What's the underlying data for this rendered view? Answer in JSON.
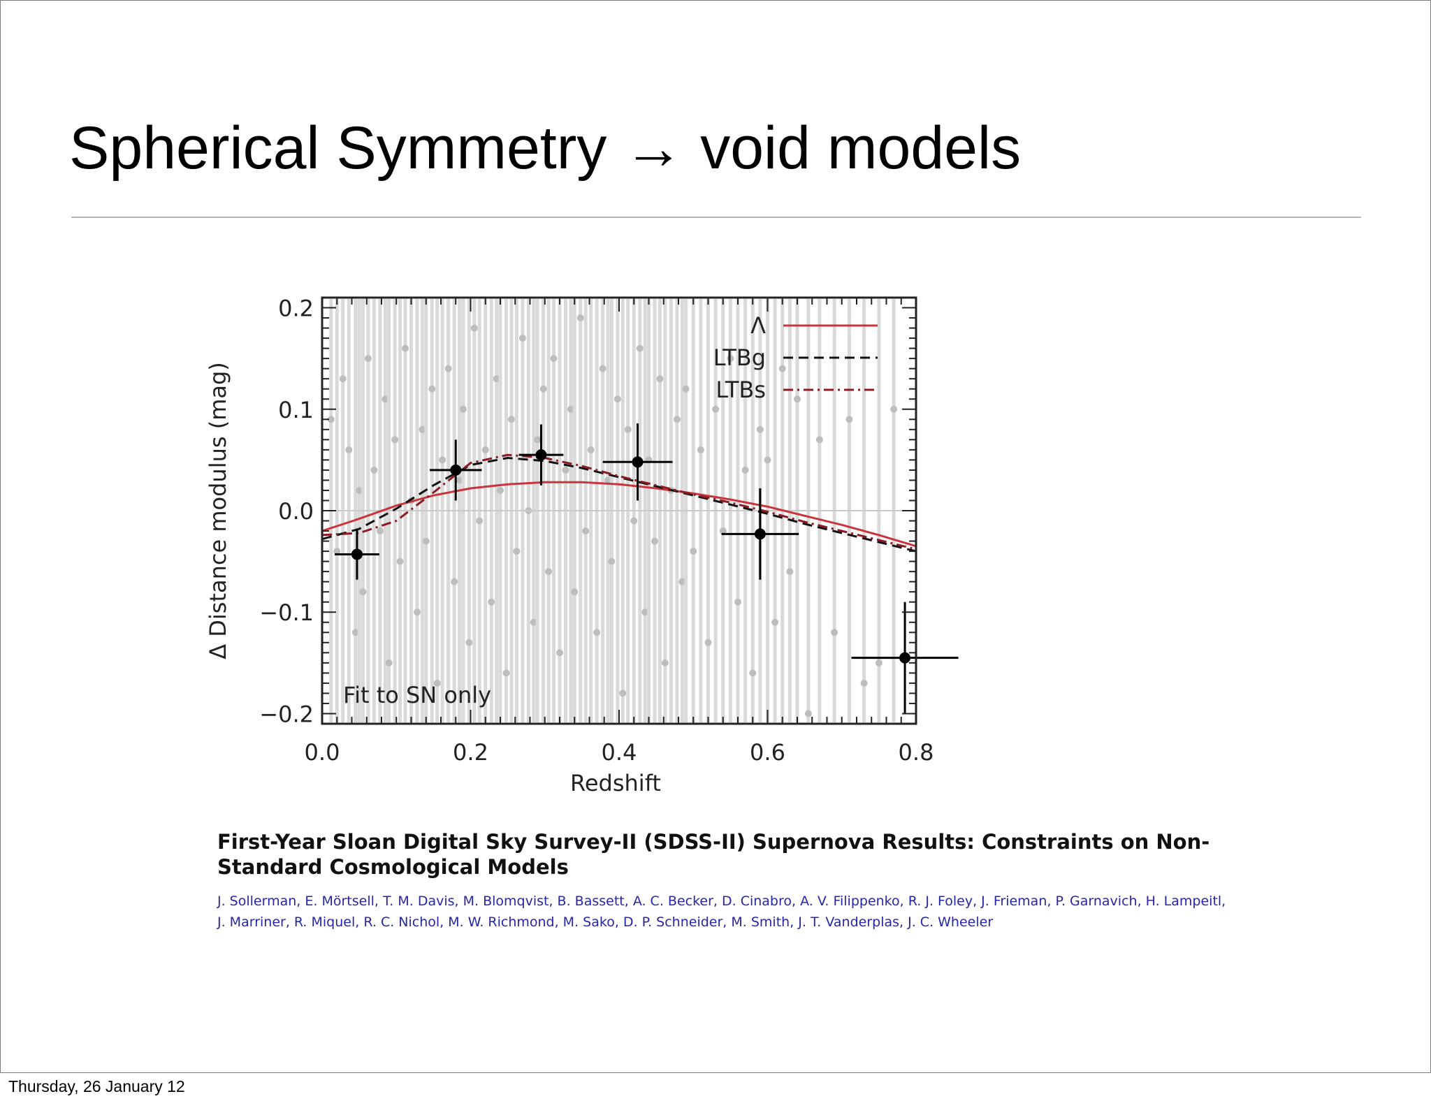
{
  "slide": {
    "title": "Spherical Symmetry → void models",
    "footer_date": "Thursday, 26 January 12"
  },
  "paper": {
    "title": "First-Year Sloan Digital Sky Survey-II (SDSS-II) Supernova Results: Constraints on Non-Standard Cosmological Models",
    "authors": "J. Sollerman, E. Mörtsell, T. M. Davis, M. Blomqvist, B. Bassett, A. C. Becker, D. Cinabro, A. V. Filippenko, R. J. Foley, J. Frieman, P. Garnavich, H. Lampeitl, J. Marriner, R. Miquel, R. C. Nichol, M. W. Richmond, M. Sako, D. P. Schneider, M. Smith, J. T. Vanderplas, J. C. Wheeler"
  },
  "chart_data": {
    "type": "scatter",
    "title": "",
    "xlabel": "Redshift",
    "ylabel": "Δ Distance modulus (mag)",
    "xlim": [
      0.0,
      0.8
    ],
    "ylim": [
      -0.21,
      0.21
    ],
    "xticks": [
      "0.0",
      "0.2",
      "0.4",
      "0.6",
      "0.8"
    ],
    "xtick_values": [
      0.0,
      0.2,
      0.4,
      0.6,
      0.8
    ],
    "yticks": [
      "0.2",
      "0.1",
      "0.0",
      "−0.1",
      "−0.2"
    ],
    "ytick_values": [
      0.2,
      0.1,
      0.0,
      -0.1,
      -0.2
    ],
    "reference_line_y": 0.0,
    "annotation": "Fit to SN only",
    "legend_position": "top-right",
    "colors": {
      "lambda": "#c8353d",
      "ltbg": "#111111",
      "ltbs": "#8c1c24",
      "points": "#bdbdbd",
      "binned": "#000000"
    },
    "series": [
      {
        "name": "Λ",
        "kind": "line",
        "style": "solid",
        "x": [
          0.0,
          0.05,
          0.1,
          0.15,
          0.2,
          0.25,
          0.3,
          0.35,
          0.4,
          0.45,
          0.5,
          0.55,
          0.6,
          0.65,
          0.7,
          0.75,
          0.8
        ],
        "y": [
          -0.02,
          -0.008,
          0.005,
          0.015,
          0.022,
          0.026,
          0.028,
          0.028,
          0.026,
          0.022,
          0.017,
          0.011,
          0.004,
          -0.005,
          -0.014,
          -0.024,
          -0.035
        ]
      },
      {
        "name": "LTBg",
        "kind": "line",
        "style": "dashed",
        "x": [
          0.0,
          0.05,
          0.1,
          0.15,
          0.2,
          0.25,
          0.3,
          0.35,
          0.4,
          0.45,
          0.5,
          0.55,
          0.6,
          0.65,
          0.7,
          0.75,
          0.8
        ],
        "y": [
          -0.028,
          -0.018,
          0.002,
          0.025,
          0.045,
          0.052,
          0.049,
          0.042,
          0.033,
          0.024,
          0.015,
          0.006,
          -0.003,
          -0.013,
          -0.022,
          -0.031,
          -0.04
        ]
      },
      {
        "name": "LTBs",
        "kind": "line",
        "style": "dashdot",
        "x": [
          0.0,
          0.05,
          0.1,
          0.15,
          0.2,
          0.25,
          0.3,
          0.35,
          0.4,
          0.45,
          0.5,
          0.55,
          0.6,
          0.65,
          0.7,
          0.75,
          0.8
        ],
        "y": [
          -0.024,
          -0.022,
          -0.01,
          0.018,
          0.047,
          0.055,
          0.052,
          0.044,
          0.034,
          0.025,
          0.016,
          0.008,
          -0.001,
          -0.011,
          -0.02,
          -0.029,
          -0.038
        ]
      },
      {
        "name": "",
        "kind": "binned-points",
        "points": [
          {
            "x": 0.047,
            "y": -0.043,
            "xerr": 0.03,
            "yerr": 0.025
          },
          {
            "x": 0.18,
            "y": 0.04,
            "xerr": 0.035,
            "yerr": 0.03
          },
          {
            "x": 0.295,
            "y": 0.055,
            "xerr": 0.03,
            "yerr": 0.03
          },
          {
            "x": 0.425,
            "y": 0.048,
            "xerr": 0.047,
            "yerr": 0.038
          },
          {
            "x": 0.59,
            "y": -0.023,
            "xerr": 0.052,
            "yerr": 0.045
          },
          {
            "x": 0.785,
            "y": -0.145,
            "xerr": 0.072,
            "yerr": 0.055
          }
        ]
      },
      {
        "name": "",
        "kind": "individual-points",
        "x": [
          0.012,
          0.02,
          0.028,
          0.036,
          0.045,
          0.05,
          0.055,
          0.062,
          0.07,
          0.078,
          0.085,
          0.09,
          0.098,
          0.105,
          0.112,
          0.12,
          0.128,
          0.135,
          0.14,
          0.148,
          0.155,
          0.162,
          0.17,
          0.178,
          0.185,
          0.19,
          0.198,
          0.205,
          0.212,
          0.22,
          0.228,
          0.235,
          0.24,
          0.248,
          0.255,
          0.262,
          0.27,
          0.278,
          0.285,
          0.29,
          0.298,
          0.305,
          0.312,
          0.32,
          0.328,
          0.335,
          0.34,
          0.348,
          0.355,
          0.362,
          0.37,
          0.378,
          0.385,
          0.39,
          0.398,
          0.405,
          0.412,
          0.42,
          0.428,
          0.435,
          0.44,
          0.448,
          0.455,
          0.462,
          0.47,
          0.478,
          0.485,
          0.49,
          0.5,
          0.51,
          0.52,
          0.53,
          0.54,
          0.55,
          0.56,
          0.57,
          0.58,
          0.59,
          0.6,
          0.61,
          0.62,
          0.63,
          0.64,
          0.655,
          0.67,
          0.69,
          0.71,
          0.73,
          0.75,
          0.77
        ],
        "y": [
          0.09,
          -0.04,
          0.13,
          0.06,
          -0.12,
          0.02,
          -0.08,
          0.15,
          0.04,
          -0.02,
          0.11,
          -0.15,
          0.07,
          -0.05,
          0.16,
          0.01,
          -0.1,
          0.08,
          -0.03,
          0.12,
          -0.17,
          0.05,
          0.14,
          -0.07,
          0.03,
          0.1,
          -0.13,
          0.18,
          -0.01,
          0.06,
          -0.09,
          0.13,
          0.02,
          -0.16,
          0.09,
          -0.04,
          0.17,
          0.0,
          -0.11,
          0.07,
          0.12,
          -0.06,
          0.15,
          -0.14,
          0.04,
          0.1,
          -0.08,
          0.19,
          -0.02,
          0.06,
          -0.12,
          0.14,
          0.03,
          -0.05,
          0.11,
          -0.18,
          0.08,
          -0.01,
          0.16,
          -0.1,
          0.05,
          -0.03,
          0.13,
          -0.15,
          0.02,
          0.09,
          -0.07,
          0.12,
          -0.04,
          0.06,
          -0.13,
          0.1,
          -0.02,
          0.15,
          -0.09,
          0.04,
          -0.16,
          0.08,
          0.05,
          -0.11,
          0.14,
          -0.06,
          0.11,
          -0.2,
          0.07,
          -0.12,
          0.09,
          -0.17,
          -0.15,
          0.1
        ]
      }
    ]
  }
}
